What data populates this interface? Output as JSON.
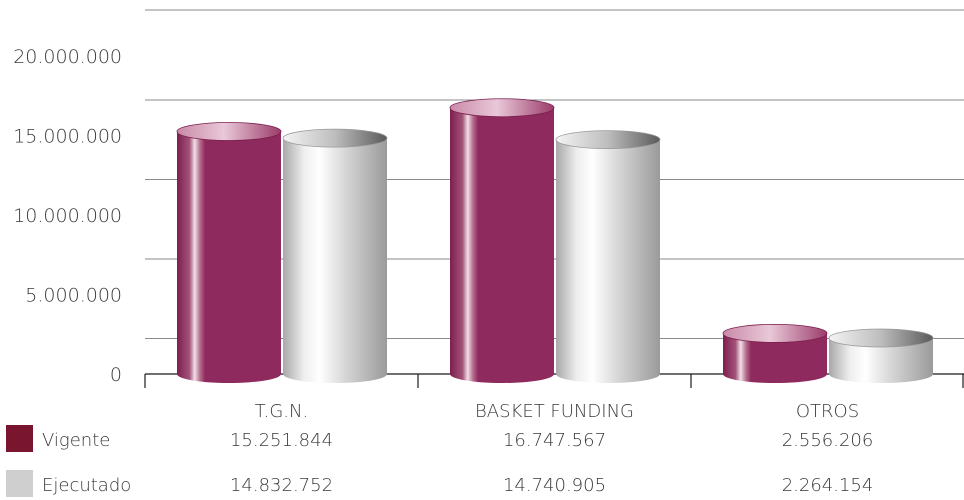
{
  "chart_data": {
    "type": "bar",
    "style": "3d-cylinder",
    "categories": [
      "T.G.N.",
      "BASKET FUNDING",
      "OTROS"
    ],
    "series": [
      {
        "name": "Vigente",
        "values": [
          15251844,
          16747567,
          2556206
        ],
        "color": "#8f2a5e",
        "swatch": "#7a1530"
      },
      {
        "name": "Ejecutado",
        "values": [
          14832752,
          14740905,
          2264154
        ],
        "color": "#c8c8c8",
        "swatch": "#cfcfcf"
      }
    ],
    "y_ticks": [
      "0",
      "5.000.000",
      "10.000.000",
      "15.000.000",
      "20.000.000"
    ],
    "ylim": [
      0,
      20000000
    ],
    "grid": true,
    "table_values": [
      [
        "15.251.844",
        "16.747.567",
        "2.556.206"
      ],
      [
        "14.832.752",
        "14.740.905",
        "2.264.154"
      ]
    ]
  }
}
